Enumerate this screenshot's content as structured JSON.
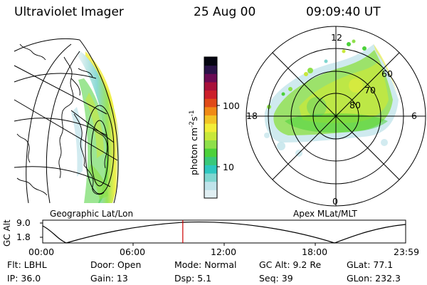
{
  "header": {
    "instrument": "Ultraviolet Imager",
    "date": "25 Aug 00",
    "time": "09:09:40 UT"
  },
  "left_panel": {
    "caption": "Geographic Lat/Lon"
  },
  "right_panel": {
    "caption": "Apex MLat/MLT",
    "mlt_labels": {
      "top": "12",
      "left": "18",
      "right": "6",
      "bottom": "0"
    },
    "lat_labels": [
      "60",
      "70",
      "80"
    ]
  },
  "colorbar": {
    "unit_label": "photon cm",
    "unit_exp1": "-2",
    "unit_mid": "s",
    "unit_exp2": "-1",
    "ticks": [
      "100",
      "10"
    ],
    "colors": [
      "#e0eef2",
      "#bfe3ea",
      "#7fd6d0",
      "#2ec7c0",
      "#39c87a",
      "#4cd13a",
      "#8ee04a",
      "#c8e83a",
      "#f2ee38",
      "#f2c426",
      "#f08a16",
      "#e04a18",
      "#cc1f2a",
      "#a8103a",
      "#6a0a54",
      "#2a1248",
      "#050510"
    ]
  },
  "timeline": {
    "ylabel": "GC Alt",
    "y_ticks": [
      "9.0",
      "1.8"
    ],
    "x_ticks": [
      "00:00",
      "06:00",
      "12:00",
      "18:00",
      "23:59"
    ],
    "current_time_fraction": 0.386,
    "marker_color": "#cc0000"
  },
  "info": {
    "filter": "Flt: LBHL",
    "ip": "IP: 36.0",
    "door": "Door: Open",
    "gain": "Gain: 13",
    "mode": "Mode: Normal",
    "dsp": "Dsp:    5.1",
    "gc_alt": "GC Alt: 9.2 Re",
    "seq": "Seq: 39",
    "glat": "GLat:  77.1",
    "glon": "GLon: 232.3"
  }
}
